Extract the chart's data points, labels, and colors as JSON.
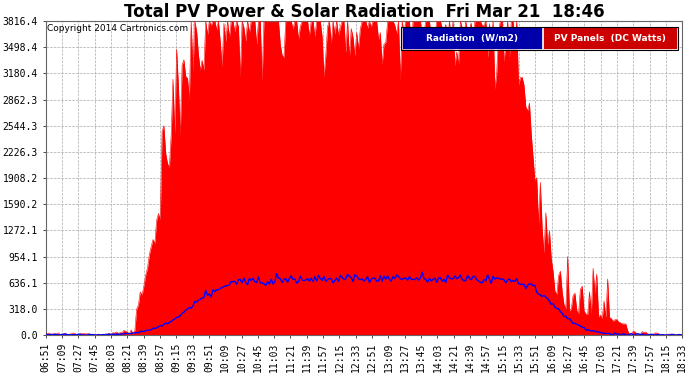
{
  "title": "Total PV Power & Solar Radiation  Fri Mar 21  18:46",
  "copyright": "Copyright 2014 Cartronics.com",
  "background_color": "#ffffff",
  "plot_bg_color": "#ffffff",
  "grid_color": "#aaaaaa",
  "yticks": [
    0.0,
    318.0,
    636.1,
    954.1,
    1272.1,
    1590.2,
    1908.2,
    2226.3,
    2544.3,
    2862.3,
    3180.4,
    3498.4,
    3816.4
  ],
  "ymax": 3816.4,
  "legend_labels": [
    "Radiation  (W/m2)",
    "PV Panels  (DC Watts)"
  ],
  "pv_color": "#ff0000",
  "rad_color": "#0000ff",
  "legend_rad_bg": "#0000aa",
  "legend_pv_bg": "#cc0000",
  "title_fontsize": 12,
  "tick_fontsize": 7,
  "time_labels": [
    "06:51",
    "07:09",
    "07:27",
    "07:45",
    "08:03",
    "08:21",
    "08:39",
    "08:57",
    "09:15",
    "09:33",
    "09:51",
    "10:09",
    "10:27",
    "10:45",
    "11:03",
    "11:21",
    "11:39",
    "11:57",
    "12:15",
    "12:33",
    "12:51",
    "13:09",
    "13:27",
    "13:45",
    "14:03",
    "14:21",
    "14:39",
    "14:57",
    "15:15",
    "15:33",
    "15:51",
    "16:09",
    "16:27",
    "16:45",
    "17:03",
    "17:21",
    "17:39",
    "17:57",
    "18:15",
    "18:33"
  ]
}
